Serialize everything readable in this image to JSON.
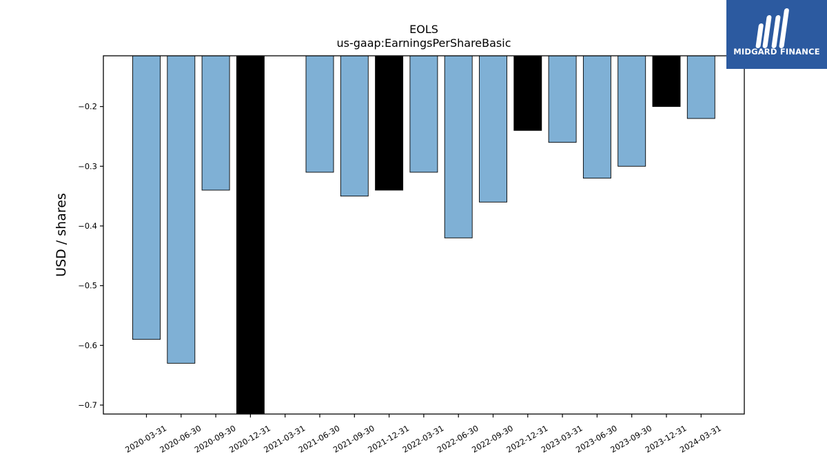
{
  "chart_data": {
    "type": "bar",
    "title": "EOLS",
    "subtitle": "us-gaap:EarningsPerShareBasic",
    "xlabel": "",
    "ylabel": "USD / shares",
    "categories": [
      "2020-03-31",
      "2020-06-30",
      "2020-09-30",
      "2020-12-31",
      "2021-03-31",
      "2021-06-30",
      "2021-09-30",
      "2021-12-31",
      "2022-03-31",
      "2022-06-30",
      "2022-09-30",
      "2022-12-31",
      "2023-03-31",
      "2023-06-30",
      "2023-09-30",
      "2023-12-31",
      "2024-03-31"
    ],
    "values": [
      -0.59,
      -0.63,
      -0.34,
      -0.75,
      null,
      -0.31,
      -0.35,
      -0.34,
      -0.31,
      -0.42,
      -0.36,
      -0.24,
      -0.26,
      -0.32,
      -0.3,
      -0.2,
      -0.22
    ],
    "bar_colors": [
      "#7fb0d5",
      "#7fb0d5",
      "#7fb0d5",
      "#000000",
      null,
      "#7fb0d5",
      "#7fb0d5",
      "#000000",
      "#7fb0d5",
      "#7fb0d5",
      "#7fb0d5",
      "#000000",
      "#7fb0d5",
      "#7fb0d5",
      "#7fb0d5",
      "#000000",
      "#7fb0d5"
    ],
    "ylim": [
      -0.715,
      -0.115
    ],
    "yticks": [
      -0.7,
      -0.6,
      -0.5,
      -0.4,
      -0.3,
      -0.2
    ],
    "ytick_labels": [
      "−0.7",
      "−0.6",
      "−0.5",
      "−0.4",
      "−0.3",
      "−0.2"
    ],
    "grid": false,
    "legend": "none"
  },
  "logo": {
    "text": "MIDGARD FINANCE",
    "icon": "midgard-logo-icon",
    "color": "#2c5aa0"
  }
}
